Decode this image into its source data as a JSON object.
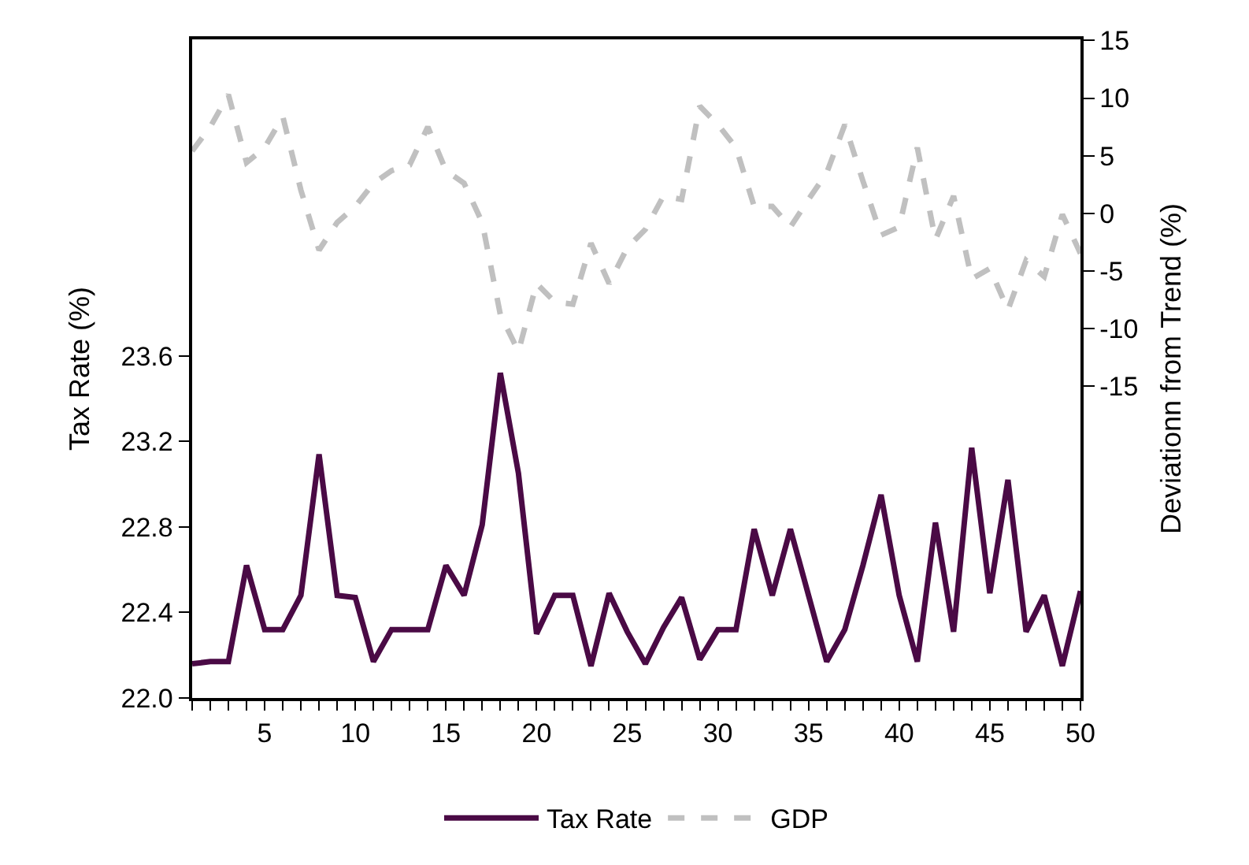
{
  "chart_data": {
    "type": "line",
    "ylabel": "Tax Rate (%)",
    "y2label": "Deviationn from Trend (%)",
    "x": [
      1,
      2,
      3,
      4,
      5,
      6,
      7,
      8,
      9,
      10,
      11,
      12,
      13,
      14,
      15,
      16,
      17,
      18,
      19,
      20,
      21,
      22,
      23,
      24,
      25,
      26,
      27,
      28,
      29,
      30,
      31,
      32,
      33,
      34,
      35,
      36,
      37,
      38,
      39,
      40,
      41,
      42,
      43,
      44,
      45,
      46,
      47,
      48,
      49,
      50
    ],
    "series": [
      {
        "name": "Tax Rate",
        "color": "#4a0a45",
        "line_style": "solid",
        "values": [
          22.16,
          22.17,
          22.17,
          22.62,
          22.32,
          22.32,
          22.48,
          23.14,
          22.48,
          22.47,
          22.17,
          22.32,
          22.32,
          22.32,
          22.62,
          22.48,
          22.81,
          23.52,
          23.05,
          22.3,
          22.48,
          22.48,
          22.15,
          22.49,
          22.31,
          22.16,
          22.33,
          22.47,
          22.18,
          22.32,
          22.32,
          22.79,
          22.48,
          22.79,
          22.48,
          22.17,
          22.32,
          22.62,
          22.95,
          22.48,
          22.17,
          22.82,
          22.31,
          23.17,
          22.49,
          23.02,
          22.31,
          22.48,
          22.15,
          22.5
        ]
      },
      {
        "name": "GDP",
        "color": "#c0c0c0",
        "line_style": "dashed",
        "axis": "y2",
        "values": [
          5.4,
          7.5,
          10.3,
          4.4,
          5.7,
          8.4,
          2.0,
          -3.2,
          -0.8,
          0.6,
          2.6,
          3.7,
          4.2,
          7.5,
          3.7,
          2.6,
          -0.8,
          -8.8,
          -12.0,
          -6.1,
          -7.7,
          -7.9,
          -2.6,
          -6.1,
          -3.0,
          -1.4,
          1.5,
          1.2,
          9.3,
          7.7,
          5.7,
          0.6,
          0.6,
          -1.2,
          1.2,
          3.5,
          7.7,
          2.8,
          -1.9,
          -1.2,
          5.7,
          -2.3,
          1.5,
          -5.7,
          -4.8,
          -8.4,
          -4.1,
          -5.5,
          -0.1,
          -3.5
        ]
      }
    ],
    "xlim": [
      1,
      50
    ],
    "xticks": [
      {
        "value": 1,
        "label": null
      },
      {
        "value": 2,
        "label": null
      },
      {
        "value": 3,
        "label": null
      },
      {
        "value": 4,
        "label": null
      },
      5,
      {
        "value": 6,
        "label": null
      },
      {
        "value": 7,
        "label": null
      },
      {
        "value": 8,
        "label": null
      },
      {
        "value": 9,
        "label": null
      },
      10,
      {
        "value": 11,
        "label": null
      },
      {
        "value": 12,
        "label": null
      },
      {
        "value": 13,
        "label": null
      },
      {
        "value": 14,
        "label": null
      },
      15,
      {
        "value": 16,
        "label": null
      },
      {
        "value": 17,
        "label": null
      },
      {
        "value": 18,
        "label": null
      },
      {
        "value": 19,
        "label": null
      },
      20,
      {
        "value": 21,
        "label": null
      },
      {
        "value": 22,
        "label": null
      },
      {
        "value": 23,
        "label": null
      },
      {
        "value": 24,
        "label": null
      },
      25,
      {
        "value": 26,
        "label": null
      },
      {
        "value": 27,
        "label": null
      },
      {
        "value": 28,
        "label": null
      },
      {
        "value": 29,
        "label": null
      },
      30,
      {
        "value": 31,
        "label": null
      },
      {
        "value": 32,
        "label": null
      },
      {
        "value": 33,
        "label": null
      },
      {
        "value": 34,
        "label": null
      },
      35,
      {
        "value": 36,
        "label": null
      },
      {
        "value": 37,
        "label": null
      },
      {
        "value": 38,
        "label": null
      },
      {
        "value": 39,
        "label": null
      },
      40,
      {
        "value": 41,
        "label": null
      },
      {
        "value": 42,
        "label": null
      },
      {
        "value": 43,
        "label": null
      },
      {
        "value": 44,
        "label": null
      },
      45,
      {
        "value": 46,
        "label": null
      },
      {
        "value": 47,
        "label": null
      },
      {
        "value": 48,
        "label": null
      },
      {
        "value": 49,
        "label": null
      },
      50
    ],
    "ylim": [
      22.0,
      25.08
    ],
    "yticks": [
      {
        "value": 22.0,
        "label": "22.0"
      },
      22.4,
      22.8,
      23.2,
      23.6
    ],
    "y2lim": [
      -42.1,
      15.1
    ],
    "y2ticks": [
      -15,
      -10,
      -5,
      0,
      5,
      10,
      15
    ],
    "legend": "bottom",
    "marker": "none"
  }
}
